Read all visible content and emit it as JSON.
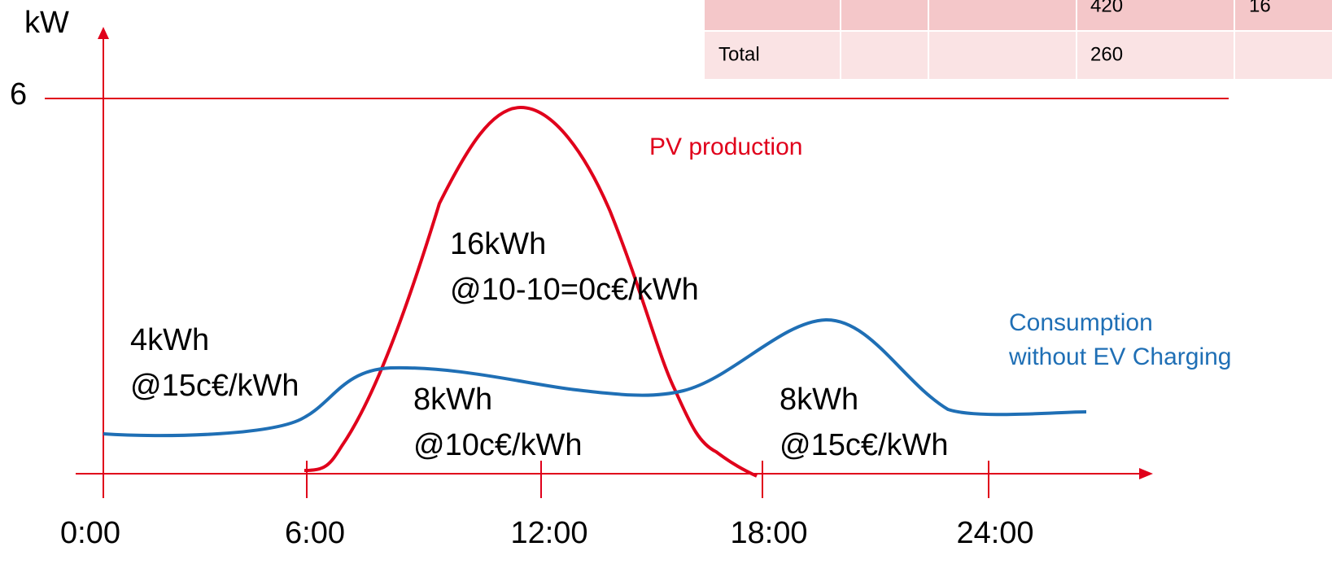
{
  "axis": {
    "y_label": "kW",
    "y_tick": "6",
    "x_ticks": [
      "0:00",
      "6:00",
      "12:00",
      "18:00",
      "24:00"
    ]
  },
  "curves": {
    "pv": "PV production",
    "consumption": [
      "Consumption",
      "without EV Charging"
    ]
  },
  "annotations": [
    [
      "4kWh",
      "@15c€/kWh"
    ],
    [
      "16kWh",
      "@10-10=0c€/kWh"
    ],
    [
      "8kWh",
      "@10c€/kWh"
    ],
    [
      "8kWh",
      "@15c€/kWh"
    ]
  ],
  "table": {
    "rows": [
      [
        "",
        "",
        "",
        "420",
        "16"
      ],
      [
        "Total",
        "",
        "",
        "260",
        ""
      ]
    ]
  }
}
